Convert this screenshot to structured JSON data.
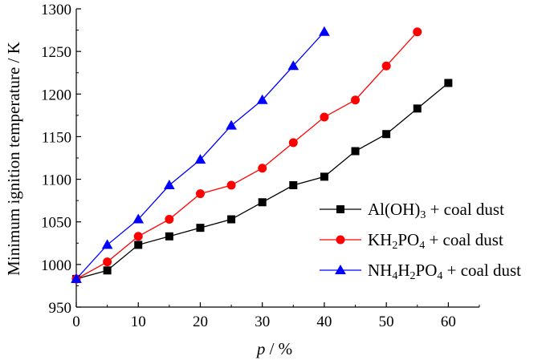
{
  "chart_data": {
    "type": "line",
    "title": "",
    "xlabel": "p / %",
    "xlabel_var": "p",
    "xlabel_unit": " / %",
    "ylabel": "Minimum ignition temperature / K",
    "xlim": [
      0,
      65
    ],
    "ylim": [
      950,
      1300
    ],
    "xticks": [
      0,
      10,
      20,
      30,
      40,
      50,
      60
    ],
    "yticks": [
      950,
      1000,
      1050,
      1100,
      1150,
      1200,
      1250,
      1300
    ],
    "grid": false,
    "legend_position": "lower-right",
    "series": [
      {
        "name": "Al(OH)3 + coal dust",
        "legend_parts": [
          [
            "Al(OH)",
            ""
          ],
          [
            "3",
            "sub"
          ],
          [
            " + coal dust",
            ""
          ]
        ],
        "marker": "square",
        "color": "#000000",
        "x": [
          0,
          5,
          10,
          15,
          20,
          25,
          30,
          35,
          40,
          45,
          50,
          55,
          60
        ],
        "y": [
          983,
          993,
          1023,
          1033,
          1043,
          1053,
          1073,
          1093,
          1103,
          1133,
          1153,
          1183,
          1213
        ]
      },
      {
        "name": "KH2PO4 + coal dust",
        "legend_parts": [
          [
            "KH",
            ""
          ],
          [
            "2",
            "sub"
          ],
          [
            "PO",
            ""
          ],
          [
            "4",
            "sub"
          ],
          [
            " + coal dust",
            ""
          ]
        ],
        "marker": "circle",
        "color": "#ff0000",
        "x": [
          0,
          5,
          10,
          15,
          20,
          25,
          30,
          35,
          40,
          45,
          50,
          55
        ],
        "y": [
          983,
          1003,
          1033,
          1053,
          1083,
          1093,
          1113,
          1143,
          1173,
          1193,
          1233,
          1273
        ]
      },
      {
        "name": "NH4H2PO4 + coal dust",
        "legend_parts": [
          [
            "NH",
            ""
          ],
          [
            "4",
            "sub"
          ],
          [
            "H",
            ""
          ],
          [
            "2",
            "sub"
          ],
          [
            "PO",
            ""
          ],
          [
            "4",
            "sub"
          ],
          [
            " + coal dust",
            ""
          ]
        ],
        "marker": "triangle",
        "color": "#0000ff",
        "x": [
          0,
          5,
          10,
          15,
          20,
          25,
          30,
          35,
          40
        ],
        "y": [
          983,
          1023,
          1053,
          1093,
          1123,
          1163,
          1193,
          1233,
          1273
        ]
      }
    ]
  }
}
